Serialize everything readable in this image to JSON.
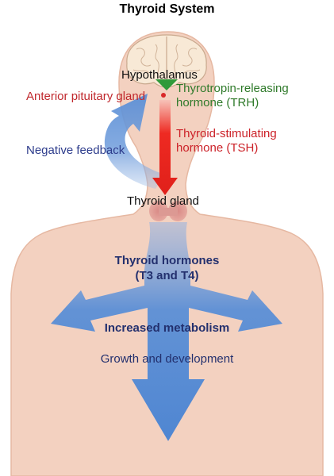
{
  "title": "Thyroid System",
  "labels": {
    "hypothalamus": "Hypothalamus",
    "anterior_pituitary": "Anterior pituitary gland",
    "trh_line1": "Thyrotropin-releasing",
    "trh_line2": "hormone (TRH)",
    "tsh_line1": "Thyroid-stimulating",
    "tsh_line2": "hormone (TSH)",
    "negative_feedback": "Negative feedback",
    "thyroid_gland": "Thyroid gland",
    "thyroid_hormones_line1": "Thyroid hormones",
    "thyroid_hormones_line2": "(T3 and T4)",
    "increased_metabolism": "Increased metabolism",
    "growth": "Growth and development"
  },
  "colors": {
    "body_skin": "#f3d1c0",
    "body_outline": "#e6b8a2",
    "brain": "#f8e9d6",
    "arrow_blue": "#5b8fd6",
    "arrow_red": "#ee2a22",
    "trh_green": "#2f7a2a",
    "pituitary_red": "#c0282d",
    "tsh_red": "#cc2229",
    "feedback_navy": "#2d3c8c",
    "hormone_navy": "#23306e",
    "black": "#111111"
  }
}
